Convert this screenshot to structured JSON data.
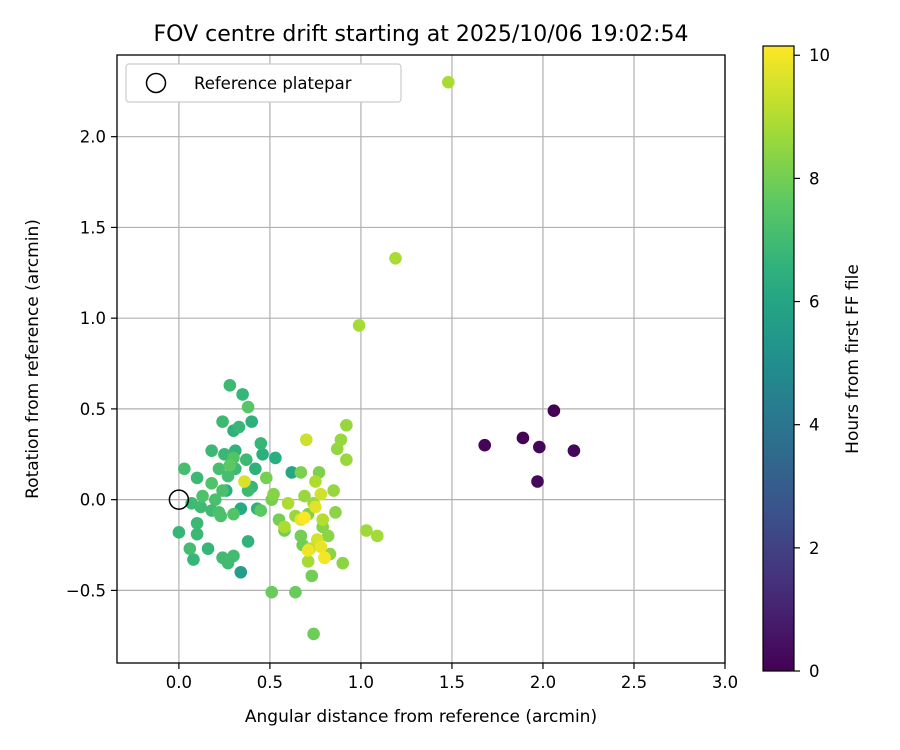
{
  "chart_data": {
    "type": "scatter",
    "title": "FOV centre drift starting at 2025/10/06 19:02:54",
    "xlabel": "Angular distance from reference (arcmin)",
    "ylabel": "Rotation from reference (arcmin)",
    "xlim": [
      -0.34,
      3.0
    ],
    "ylim": [
      -0.9,
      2.45
    ],
    "xticks": [
      0.0,
      0.5,
      1.0,
      1.5,
      2.0,
      2.5,
      3.0
    ],
    "xtick_labels": [
      "0.0",
      "0.5",
      "1.0",
      "1.5",
      "2.0",
      "2.5",
      "3.0"
    ],
    "yticks": [
      -0.5,
      0.0,
      0.5,
      1.0,
      1.5,
      2.0
    ],
    "ytick_labels": [
      "−0.5",
      "0.0",
      "0.5",
      "1.0",
      "1.5",
      "2.0"
    ],
    "grid": true,
    "legend": {
      "position": "top-left",
      "entries": [
        "Reference platepar"
      ]
    },
    "reference_point": {
      "x": 0.0,
      "y": 0.0,
      "marker": "open-circle"
    },
    "colorbar": {
      "label": "Hours from first FF file",
      "colormap": "viridis",
      "range": [
        0,
        10.15
      ],
      "ticks": [
        0,
        2,
        4,
        6,
        8,
        10
      ],
      "tick_labels": [
        "0",
        "2",
        "4",
        "6",
        "8",
        "10"
      ]
    },
    "points": [
      {
        "x": 2.06,
        "y": 0.49,
        "h": 0.0
      },
      {
        "x": 1.89,
        "y": 0.34,
        "h": 0.05
      },
      {
        "x": 1.68,
        "y": 0.3,
        "h": 0.1
      },
      {
        "x": 1.98,
        "y": 0.29,
        "h": 0.15
      },
      {
        "x": 2.17,
        "y": 0.27,
        "h": 0.2
      },
      {
        "x": 1.97,
        "y": 0.1,
        "h": 0.25
      },
      {
        "x": 0.34,
        "y": -0.4,
        "h": 5.7
      },
      {
        "x": 0.62,
        "y": 0.15,
        "h": 6.1
      },
      {
        "x": 0.34,
        "y": -0.05,
        "h": 6.2
      },
      {
        "x": 0.26,
        "y": 0.05,
        "h": 6.4
      },
      {
        "x": 0.53,
        "y": 0.23,
        "h": 6.4
      },
      {
        "x": 0.46,
        "y": 0.25,
        "h": 6.45
      },
      {
        "x": 0.4,
        "y": 0.43,
        "h": 6.5
      },
      {
        "x": 0.3,
        "y": 0.38,
        "h": 6.55
      },
      {
        "x": 0.42,
        "y": 0.17,
        "h": 6.55
      },
      {
        "x": 0.31,
        "y": 0.27,
        "h": 6.6
      },
      {
        "x": 0.38,
        "y": -0.23,
        "h": 6.6
      },
      {
        "x": 0.43,
        "y": -0.05,
        "h": 6.6
      },
      {
        "x": 0.16,
        "y": -0.27,
        "h": 6.7
      },
      {
        "x": 0.08,
        "y": -0.33,
        "h": 6.7
      },
      {
        "x": 0.0,
        "y": -0.18,
        "h": 6.75
      },
      {
        "x": 0.35,
        "y": 0.58,
        "h": 6.7
      },
      {
        "x": 0.33,
        "y": 0.4,
        "h": 6.75
      },
      {
        "x": 0.45,
        "y": 0.31,
        "h": 6.75
      },
      {
        "x": 0.25,
        "y": 0.25,
        "h": 6.8
      },
      {
        "x": 0.4,
        "y": 0.07,
        "h": 6.8
      },
      {
        "x": 0.18,
        "y": 0.27,
        "h": 6.85
      },
      {
        "x": 0.1,
        "y": 0.12,
        "h": 6.85
      },
      {
        "x": 0.1,
        "y": -0.13,
        "h": 6.85
      },
      {
        "x": 0.1,
        "y": -0.19,
        "h": 6.85
      },
      {
        "x": 0.28,
        "y": 0.63,
        "h": 6.9
      },
      {
        "x": 0.24,
        "y": 0.43,
        "h": 6.9
      },
      {
        "x": 0.37,
        "y": 0.22,
        "h": 6.9
      },
      {
        "x": 0.31,
        "y": 0.17,
        "h": 6.9
      },
      {
        "x": 0.38,
        "y": 0.05,
        "h": 6.9
      },
      {
        "x": 0.18,
        "y": -0.06,
        "h": 6.95
      },
      {
        "x": 0.12,
        "y": -0.04,
        "h": 6.95
      },
      {
        "x": 0.07,
        "y": -0.02,
        "h": 6.95
      },
      {
        "x": 0.24,
        "y": -0.32,
        "h": 7.0
      },
      {
        "x": 0.27,
        "y": -0.35,
        "h": 7.0
      },
      {
        "x": 0.3,
        "y": -0.31,
        "h": 7.0
      },
      {
        "x": 0.06,
        "y": -0.27,
        "h": 7.05
      },
      {
        "x": 0.03,
        "y": 0.17,
        "h": 7.1
      },
      {
        "x": 0.22,
        "y": 0.17,
        "h": 7.1
      },
      {
        "x": 0.27,
        "y": 0.13,
        "h": 7.1
      },
      {
        "x": 0.24,
        "y": 0.05,
        "h": 7.2
      },
      {
        "x": 0.2,
        "y": 0.0,
        "h": 7.2
      },
      {
        "x": 0.22,
        "y": -0.07,
        "h": 7.2
      },
      {
        "x": 0.23,
        "y": -0.09,
        "h": 7.25
      },
      {
        "x": 0.13,
        "y": 0.02,
        "h": 7.3
      },
      {
        "x": 0.18,
        "y": 0.09,
        "h": 7.35
      },
      {
        "x": 0.3,
        "y": 0.23,
        "h": 7.4
      },
      {
        "x": 0.3,
        "y": -0.08,
        "h": 7.4
      },
      {
        "x": 0.38,
        "y": 0.51,
        "h": 7.5
      },
      {
        "x": 0.28,
        "y": 0.19,
        "h": 7.6
      },
      {
        "x": 0.45,
        "y": -0.06,
        "h": 7.6
      },
      {
        "x": 0.51,
        "y": -0.51,
        "h": 7.8
      },
      {
        "x": 0.64,
        "y": -0.51,
        "h": 7.8
      },
      {
        "x": 0.74,
        "y": -0.74,
        "h": 7.9
      },
      {
        "x": 0.68,
        "y": -0.25,
        "h": 7.9
      },
      {
        "x": 0.73,
        "y": -0.42,
        "h": 7.95
      },
      {
        "x": 0.58,
        "y": -0.17,
        "h": 8.0
      },
      {
        "x": 0.67,
        "y": -0.2,
        "h": 8.0
      },
      {
        "x": 0.55,
        "y": -0.11,
        "h": 8.0
      },
      {
        "x": 0.48,
        "y": 0.12,
        "h": 8.05
      },
      {
        "x": 0.51,
        "y": 0.0,
        "h": 8.05
      },
      {
        "x": 0.67,
        "y": 0.15,
        "h": 8.1
      },
      {
        "x": 0.77,
        "y": 0.15,
        "h": 8.15
      },
      {
        "x": 0.71,
        "y": -0.08,
        "h": 8.2
      },
      {
        "x": 0.52,
        "y": 0.03,
        "h": 8.3
      },
      {
        "x": 0.79,
        "y": -0.15,
        "h": 8.3
      },
      {
        "x": 0.82,
        "y": -0.2,
        "h": 8.35
      },
      {
        "x": 0.86,
        "y": -0.07,
        "h": 8.4
      },
      {
        "x": 0.9,
        "y": -0.35,
        "h": 8.4
      },
      {
        "x": 0.83,
        "y": -0.3,
        "h": 8.4
      },
      {
        "x": 0.87,
        "y": 0.28,
        "h": 8.5
      },
      {
        "x": 0.85,
        "y": 0.05,
        "h": 8.55
      },
      {
        "x": 0.89,
        "y": 0.33,
        "h": 8.55
      },
      {
        "x": 0.92,
        "y": 0.41,
        "h": 8.55
      },
      {
        "x": 0.92,
        "y": 0.22,
        "h": 8.6
      },
      {
        "x": 0.69,
        "y": 0.02,
        "h": 8.6
      },
      {
        "x": 0.64,
        "y": -0.09,
        "h": 8.6
      },
      {
        "x": 0.74,
        "y": -0.02,
        "h": 8.65
      },
      {
        "x": 1.03,
        "y": -0.17,
        "h": 8.7
      },
      {
        "x": 1.09,
        "y": -0.2,
        "h": 8.75
      },
      {
        "x": 0.99,
        "y": 0.96,
        "h": 8.8
      },
      {
        "x": 1.19,
        "y": 1.33,
        "h": 8.85
      },
      {
        "x": 1.48,
        "y": 2.3,
        "h": 8.85
      },
      {
        "x": 0.71,
        "y": -0.34,
        "h": 8.8
      },
      {
        "x": 0.58,
        "y": -0.15,
        "h": 8.9
      },
      {
        "x": 0.6,
        "y": -0.02,
        "h": 8.9
      },
      {
        "x": 0.75,
        "y": 0.1,
        "h": 8.95
      },
      {
        "x": 0.79,
        "y": -0.11,
        "h": 9.0
      },
      {
        "x": 0.72,
        "y": -0.27,
        "h": 9.2
      },
      {
        "x": 0.8,
        "y": -0.32,
        "h": 9.3
      },
      {
        "x": 0.7,
        "y": 0.33,
        "h": 9.4
      },
      {
        "x": 0.78,
        "y": 0.03,
        "h": 9.45
      },
      {
        "x": 0.76,
        "y": -0.22,
        "h": 9.5
      },
      {
        "x": 0.36,
        "y": 0.1,
        "h": 9.6
      },
      {
        "x": 0.75,
        "y": -0.04,
        "h": 9.7
      },
      {
        "x": 0.67,
        "y": -0.11,
        "h": 9.8
      },
      {
        "x": 0.78,
        "y": -0.26,
        "h": 9.85
      },
      {
        "x": 0.71,
        "y": -0.28,
        "h": 9.9
      },
      {
        "x": 0.8,
        "y": -0.32,
        "h": 10.0
      },
      {
        "x": 0.69,
        "y": -0.1,
        "h": 10.15
      }
    ]
  }
}
